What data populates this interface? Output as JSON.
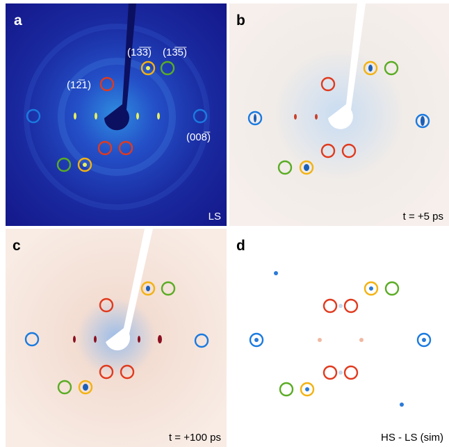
{
  "panels": [
    {
      "label": "a",
      "caption": "LS",
      "annotations": [
        "(12̅1)",
        "(13̅3̅)",
        "(13̅5̅)",
        "(008̅)"
      ]
    },
    {
      "label": "b",
      "caption": "t = +5 ps"
    },
    {
      "label": "c",
      "caption": "t = +100 ps"
    },
    {
      "label": "d",
      "caption": "HS - LS (sim)"
    }
  ]
}
